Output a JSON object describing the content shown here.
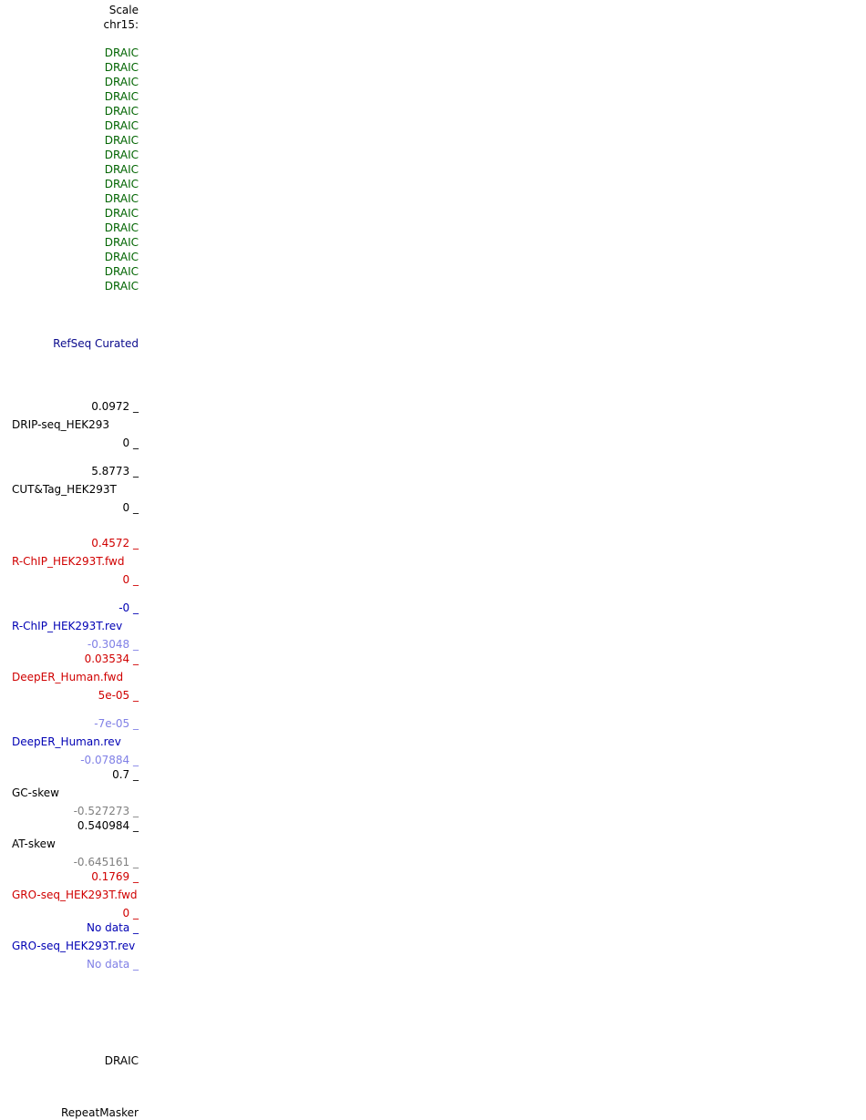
{
  "header": {
    "scale_label": "Scale",
    "chrom_label": "chr15:"
  },
  "genes": [
    "DRAIC",
    "DRAIC",
    "DRAIC",
    "DRAIC",
    "DRAIC",
    "DRAIC",
    "DRAIC",
    "DRAIC",
    "DRAIC",
    "DRAIC",
    "DRAIC",
    "DRAIC",
    "DRAIC",
    "DRAIC",
    "DRAIC",
    "DRAIC",
    "DRAIC"
  ],
  "refseq": {
    "label": "RefSeq Curated"
  },
  "tracks": {
    "drip": {
      "max": "0.0972 _",
      "name": "DRIP-seq_HEK293",
      "min": "0 _"
    },
    "cuttag": {
      "max": "5.8773 _",
      "name": "CUT&Tag_HEK293T",
      "min": "0 _"
    },
    "rchip_fwd": {
      "max": "0.4572 _",
      "name": "R-ChIP_HEK293T.fwd",
      "min": "0 _"
    },
    "rchip_rev": {
      "max": "-0 _",
      "name": "R-ChIP_HEK293T.rev",
      "min": "-0.3048 _"
    },
    "deeper_fwd": {
      "max": "0.03534 _",
      "name": "DeepER_Human.fwd",
      "min": "5e-05 _"
    },
    "deeper_rev": {
      "max": "-7e-05 _",
      "name": "DeepER_Human.rev",
      "min": "-0.07884 _"
    },
    "gc_skew": {
      "max": "0.7 _",
      "name": "GC-skew",
      "min": "-0.527273 _"
    },
    "at_skew": {
      "max": "0.540984 _",
      "name": "AT-skew",
      "min": "-0.645161 _"
    },
    "gro_fwd": {
      "max": "0.1769 _",
      "name": "GRO-seq_HEK293T.fwd",
      "min": "0 _"
    },
    "gro_rev": {
      "max": "No data _",
      "name": "GRO-seq_HEK293T.rev",
      "min": "No data _"
    }
  },
  "footer": {
    "gene_label": "DRAIC",
    "repeatmasker_label": "RepeatMasker"
  },
  "colors": {
    "gene_green": "#006400",
    "refseq_navy": "#0a0a8c",
    "fwd_red": "#d00000",
    "rev_blue": "#0000b4",
    "rev_light_blue": "#8080e6",
    "min_gray": "#808080"
  }
}
